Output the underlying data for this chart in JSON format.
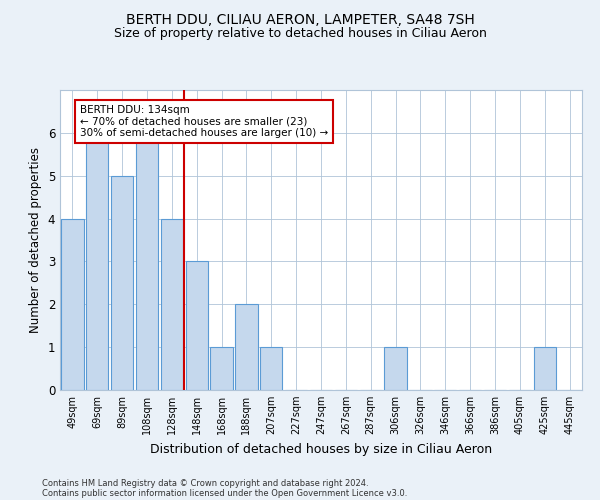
{
  "title1": "BERTH DDU, CILIAU AERON, LAMPETER, SA48 7SH",
  "title2": "Size of property relative to detached houses in Ciliau Aeron",
  "xlabel": "Distribution of detached houses by size in Ciliau Aeron",
  "ylabel": "Number of detached properties",
  "categories": [
    "49sqm",
    "69sqm",
    "89sqm",
    "108sqm",
    "128sqm",
    "148sqm",
    "168sqm",
    "188sqm",
    "207sqm",
    "227sqm",
    "247sqm",
    "267sqm",
    "287sqm",
    "306sqm",
    "326sqm",
    "346sqm",
    "366sqm",
    "386sqm",
    "405sqm",
    "425sqm",
    "445sqm"
  ],
  "values": [
    4,
    6,
    5,
    6,
    4,
    3,
    1,
    2,
    1,
    0,
    0,
    0,
    0,
    1,
    0,
    0,
    0,
    0,
    0,
    1,
    0
  ],
  "bar_color": "#c5d8ed",
  "bar_edge_color": "#5b9bd5",
  "red_line_x": 4.5,
  "annotation_title": "BERTH DDU: 134sqm",
  "annotation_line1": "← 70% of detached houses are smaller (23)",
  "annotation_line2": "30% of semi-detached houses are larger (10) →",
  "annotation_box_color": "#ffffff",
  "annotation_box_edge": "#cc0000",
  "red_line_color": "#cc0000",
  "ylim": [
    0,
    7
  ],
  "yticks": [
    0,
    1,
    2,
    3,
    4,
    5,
    6,
    7
  ],
  "footnote1": "Contains HM Land Registry data © Crown copyright and database right 2024.",
  "footnote2": "Contains public sector information licensed under the Open Government Licence v3.0.",
  "bg_color": "#eaf1f8",
  "plot_bg": "#ffffff",
  "title1_fontsize": 10,
  "title2_fontsize": 9,
  "xlabel_fontsize": 9,
  "ylabel_fontsize": 8.5
}
